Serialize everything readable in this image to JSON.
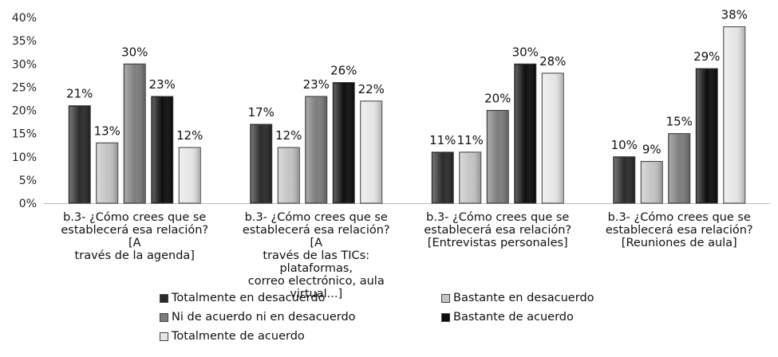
{
  "chart_data": {
    "type": "bar",
    "categories": [
      "b.3- ¿Cómo crees que se establecerá esa relación? [A través de la agenda]",
      "b.3- ¿Cómo crees que se establecerá esa relación? [A través de las TICs: plataformas, correo electrónico, aula virtual...]",
      "b.3- ¿Cómo crees que se establecerá esa relación? [Entrevistas personales]",
      "b.3- ¿Cómo crees que se establecerá esa relación? [Reuniones de aula]"
    ],
    "category_lines": [
      [
        "b.3- ¿Cómo crees que se",
        "establecerá esa relación? [A",
        "través de la agenda]"
      ],
      [
        "b.3- ¿Cómo crees que se",
        "establecerá esa relación? [A",
        "través de las TICs: plataformas,",
        "correo electrónico, aula",
        "virtual...]"
      ],
      [
        "b.3- ¿Cómo crees que se",
        "establecerá esa relación?",
        "[Entrevistas personales]"
      ],
      [
        "b.3- ¿Cómo crees que se",
        "establecerá esa relación?",
        "[Reuniones de aula]"
      ]
    ],
    "series": [
      {
        "name": "Totalmente en desacuerdo",
        "values": [
          21,
          17,
          11,
          10
        ],
        "labels": [
          "21%",
          "17%",
          "11%",
          "10%"
        ],
        "color": "#2a2a2a"
      },
      {
        "name": "Bastante en desacuerdo",
        "values": [
          13,
          12,
          11,
          9
        ],
        "labels": [
          "13%",
          "12%",
          "11%",
          "9%"
        ],
        "color": "#c4c4c4"
      },
      {
        "name": "Ni de acuerdo ni en desacuerdo",
        "values": [
          30,
          23,
          20,
          15
        ],
        "labels": [
          "30%",
          "23%",
          "20%",
          "15%"
        ],
        "color": "#7d7d7d"
      },
      {
        "name": "Bastante de acuerdo",
        "values": [
          23,
          26,
          30,
          29
        ],
        "labels": [
          "23%",
          "26%",
          "30%",
          "29%"
        ],
        "color": "#0d0d0d"
      },
      {
        "name": "Totalmente de acuerdo",
        "values": [
          12,
          22,
          28,
          38
        ],
        "labels": [
          "12%",
          "22%",
          "28%",
          "38%"
        ],
        "color": "#e6e6e6"
      }
    ],
    "yticks": [
      "0%",
      "5%",
      "10%",
      "15%",
      "20%",
      "25%",
      "30%",
      "35%",
      "40%"
    ],
    "ylim": [
      0,
      40
    ],
    "grid": false,
    "legend_position": "bottom",
    "title": "",
    "xlabel": "",
    "ylabel": ""
  }
}
